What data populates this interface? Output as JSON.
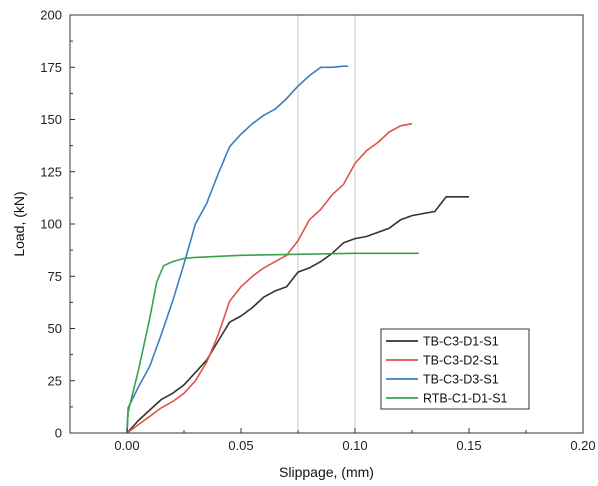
{
  "chart_data": {
    "type": "line",
    "xlabel": "Slippage, (mm)",
    "ylabel": "Load, (kN)",
    "xlim": [
      -0.025,
      0.2
    ],
    "ylim": [
      0,
      200
    ],
    "xticks": [
      0.0,
      0.05,
      0.1,
      0.15,
      0.2
    ],
    "xtick_labels": [
      "0.00",
      "0.05",
      "0.10",
      "0.15",
      "0.20"
    ],
    "yticks": [
      0,
      25,
      50,
      75,
      100,
      125,
      150,
      175,
      200
    ],
    "ytick_labels": [
      "0",
      "25",
      "50",
      "75",
      "100",
      "125",
      "150",
      "175",
      "200"
    ],
    "grid": "vertical gridlines at x = 0.075 and 0.1",
    "legend_position": "bottom-right",
    "series": [
      {
        "name": "TB-C3-D1-S1",
        "color": "#333333",
        "points": [
          [
            0.0,
            0
          ],
          [
            0.005,
            6
          ],
          [
            0.01,
            11
          ],
          [
            0.015,
            16
          ],
          [
            0.02,
            19
          ],
          [
            0.025,
            23
          ],
          [
            0.03,
            29
          ],
          [
            0.035,
            35
          ],
          [
            0.04,
            44
          ],
          [
            0.045,
            53
          ],
          [
            0.05,
            56
          ],
          [
            0.055,
            60
          ],
          [
            0.06,
            65
          ],
          [
            0.065,
            68
          ],
          [
            0.07,
            70
          ],
          [
            0.075,
            77
          ],
          [
            0.08,
            79
          ],
          [
            0.085,
            82
          ],
          [
            0.09,
            86
          ],
          [
            0.095,
            91
          ],
          [
            0.1,
            93
          ],
          [
            0.105,
            94
          ],
          [
            0.11,
            96
          ],
          [
            0.115,
            98
          ],
          [
            0.12,
            102
          ],
          [
            0.125,
            104
          ],
          [
            0.13,
            105
          ],
          [
            0.135,
            106
          ],
          [
            0.14,
            113
          ],
          [
            0.145,
            113
          ],
          [
            0.15,
            113
          ]
        ]
      },
      {
        "name": "TB-C3-D2-S1",
        "color": "#e0534a",
        "points": [
          [
            0.0,
            0
          ],
          [
            0.005,
            4
          ],
          [
            0.01,
            8
          ],
          [
            0.015,
            12
          ],
          [
            0.02,
            15
          ],
          [
            0.025,
            19
          ],
          [
            0.03,
            25
          ],
          [
            0.035,
            34
          ],
          [
            0.04,
            47
          ],
          [
            0.045,
            63
          ],
          [
            0.05,
            70
          ],
          [
            0.055,
            75
          ],
          [
            0.06,
            79
          ],
          [
            0.065,
            82
          ],
          [
            0.07,
            85
          ],
          [
            0.075,
            92
          ],
          [
            0.08,
            102
          ],
          [
            0.085,
            107
          ],
          [
            0.09,
            114
          ],
          [
            0.095,
            119
          ],
          [
            0.1,
            129
          ],
          [
            0.105,
            135
          ],
          [
            0.11,
            139
          ],
          [
            0.115,
            144
          ],
          [
            0.12,
            147
          ],
          [
            0.125,
            148
          ]
        ]
      },
      {
        "name": "TB-C3-D3-S1",
        "color": "#3b7fc4",
        "points": [
          [
            0.0,
            0
          ],
          [
            0.0005,
            12
          ],
          [
            0.005,
            22
          ],
          [
            0.01,
            32
          ],
          [
            0.015,
            47
          ],
          [
            0.02,
            63
          ],
          [
            0.025,
            81
          ],
          [
            0.03,
            100
          ],
          [
            0.035,
            110
          ],
          [
            0.04,
            124
          ],
          [
            0.045,
            137
          ],
          [
            0.05,
            143
          ],
          [
            0.055,
            148
          ],
          [
            0.06,
            152
          ],
          [
            0.065,
            155
          ],
          [
            0.07,
            160
          ],
          [
            0.075,
            166
          ],
          [
            0.08,
            171
          ],
          [
            0.085,
            175
          ],
          [
            0.09,
            175
          ],
          [
            0.095,
            175.5
          ],
          [
            0.097,
            175.5
          ]
        ]
      },
      {
        "name": "RTB-C1-D1-S1",
        "color": "#3aa24a",
        "points": [
          [
            0.0,
            0
          ],
          [
            0.0005,
            10
          ],
          [
            0.005,
            30
          ],
          [
            0.01,
            55
          ],
          [
            0.013,
            72
          ],
          [
            0.016,
            80
          ],
          [
            0.02,
            82
          ],
          [
            0.025,
            83.5
          ],
          [
            0.03,
            84
          ],
          [
            0.05,
            85
          ],
          [
            0.075,
            85.5
          ],
          [
            0.1,
            86
          ],
          [
            0.128,
            86
          ]
        ]
      }
    ]
  }
}
